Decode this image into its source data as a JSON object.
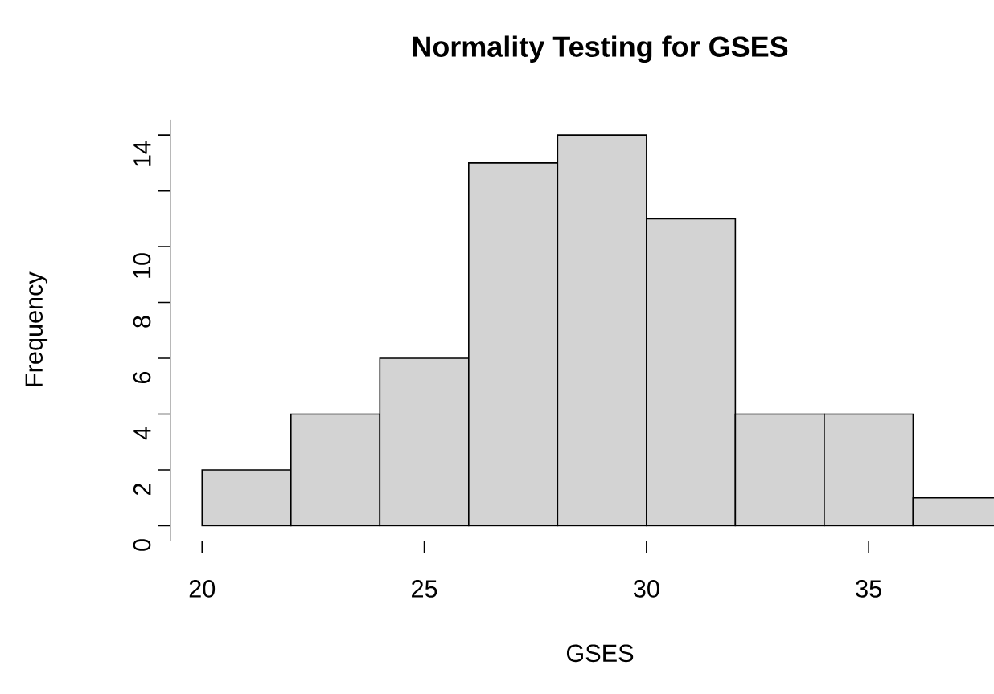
{
  "chart_data": {
    "type": "histogram",
    "title": "Normality Testing for GSES",
    "xlabel": "GSES",
    "ylabel": "Frequency",
    "bins": [
      20,
      22,
      24,
      26,
      28,
      30,
      32,
      34,
      36,
      38
    ],
    "values": [
      2,
      4,
      6,
      13,
      14,
      11,
      4,
      4,
      1
    ],
    "color": "#d3d3d3",
    "xlim": [
      19.28,
      37.82
    ],
    "ylim": [
      -0.56,
      14.56
    ],
    "xticks": [
      20,
      25,
      30,
      35
    ],
    "yticks": [
      0,
      2,
      4,
      6,
      8,
      10,
      {
        "value": 12,
        "label": null
      },
      14
    ],
    "grid": false
  }
}
